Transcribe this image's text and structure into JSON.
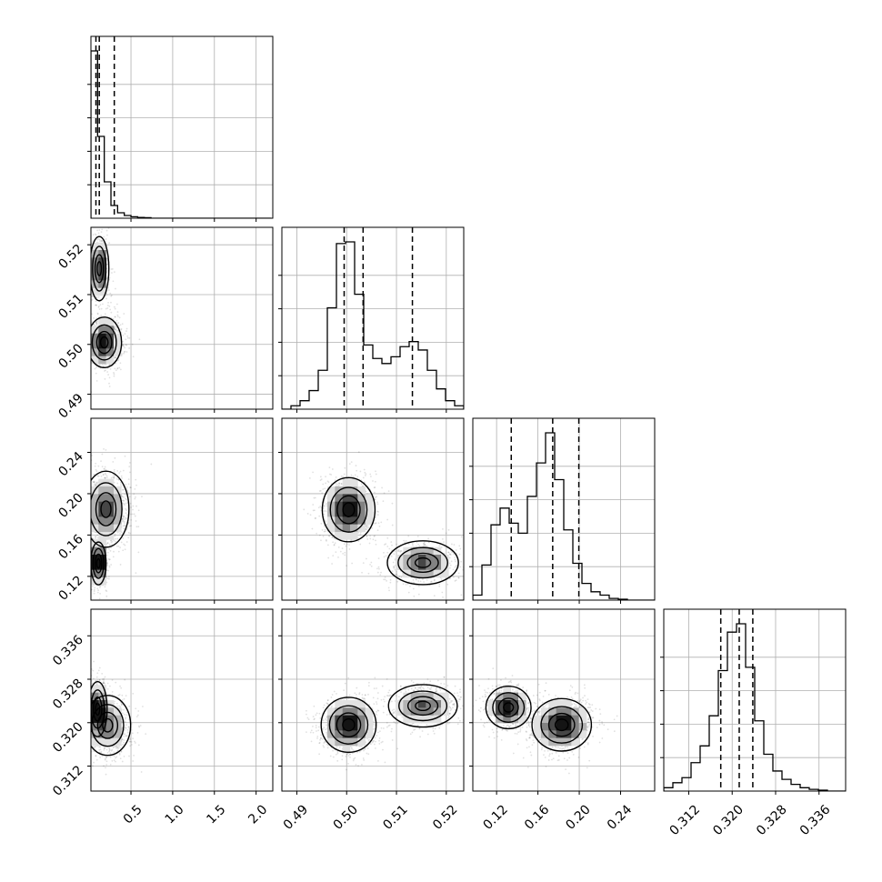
{
  "chart_data": {
    "type": "corner",
    "description_free": true,
    "parameters": [
      {
        "range": [
          0.02,
          2.2
        ],
        "ticks": [
          "0.5",
          "1.0",
          "1.5",
          "2.0"
        ],
        "tick_values": [
          0.5,
          1.0,
          1.5,
          2.0
        ],
        "quantile_lines": [
          0.08,
          0.12,
          0.3
        ],
        "histogram": {
          "bin_edges_start": 0.02,
          "bin_width": 0.08,
          "counts": [
            0.92,
            0.45,
            0.2,
            0.07,
            0.03,
            0.015,
            0.008,
            0.004,
            0.003,
            0.0,
            0.0,
            0.0,
            0.0,
            0.0,
            0.0,
            0.0,
            0.0,
            0.0,
            0.0,
            0.0,
            0.0,
            0.0,
            0.0,
            0.0,
            0.0,
            0.0,
            0.0
          ]
        }
      },
      {
        "range": [
          0.487,
          0.5235
        ],
        "ticks": [
          "0.49",
          "0.50",
          "0.51",
          "0.52"
        ],
        "tick_values": [
          0.49,
          0.5,
          0.51,
          0.52
        ],
        "quantile_lines": [
          0.4995,
          0.5033,
          0.5132
        ],
        "histogram": {
          "bin_edges_start": 0.487,
          "bin_width": 0.001825,
          "counts": [
            0.0,
            0.02,
            0.05,
            0.11,
            0.23,
            0.6,
            0.98,
            0.99,
            0.68,
            0.38,
            0.3,
            0.27,
            0.31,
            0.37,
            0.4,
            0.35,
            0.23,
            0.12,
            0.05,
            0.02
          ]
        }
      },
      {
        "range": [
          0.097,
          0.273
        ],
        "ticks": [
          "0.12",
          "0.16",
          "0.20",
          "0.24"
        ],
        "tick_values": [
          0.12,
          0.16,
          0.2,
          0.24
        ],
        "quantile_lines": [
          0.1342,
          0.1743,
          0.1996
        ],
        "histogram": {
          "bin_edges_start": 0.097,
          "bin_width": 0.0088,
          "counts": [
            0.03,
            0.21,
            0.45,
            0.55,
            0.46,
            0.4,
            0.62,
            0.82,
            1.0,
            0.72,
            0.42,
            0.22,
            0.1,
            0.05,
            0.03,
            0.01,
            0.005,
            0.0,
            0.0,
            0.0
          ]
        }
      },
      {
        "range": [
          0.3074,
          0.3409
        ],
        "ticks": [
          "0.312",
          "0.320",
          "0.328",
          "0.336"
        ],
        "tick_values": [
          0.312,
          0.32,
          0.328,
          0.336
        ],
        "quantile_lines": [
          0.3179,
          0.3213,
          0.3238
        ],
        "histogram": {
          "bin_edges_start": 0.3074,
          "bin_width": 0.001675,
          "counts": [
            0.02,
            0.05,
            0.08,
            0.17,
            0.27,
            0.45,
            0.72,
            0.95,
            1.0,
            0.74,
            0.42,
            0.22,
            0.12,
            0.07,
            0.04,
            0.02,
            0.01,
            0.005,
            0.0,
            0.0
          ]
        }
      }
    ],
    "pair_components": {
      "1_0": [
        {
          "mx": 0.12,
          "my": 0.5152,
          "sx": 0.05,
          "sy": 0.0028,
          "w": 0.4
        },
        {
          "mx": 0.18,
          "my": 0.5004,
          "sx": 0.09,
          "sy": 0.0022,
          "w": 0.6
        }
      ],
      "2_0": [
        {
          "mx": 0.11,
          "my": 0.1325,
          "sx": 0.04,
          "sy": 0.009,
          "w": 0.35
        },
        {
          "mx": 0.2,
          "my": 0.185,
          "sx": 0.12,
          "sy": 0.016,
          "w": 0.65
        }
      ],
      "2_1": [
        {
          "mx": 0.5004,
          "my": 0.1845,
          "sx": 0.0023,
          "sy": 0.0135,
          "w": 0.62
        },
        {
          "mx": 0.5153,
          "my": 0.1332,
          "sx": 0.0031,
          "sy": 0.0092,
          "w": 0.38
        }
      ],
      "3_0": [
        {
          "mx": 0.1,
          "my": 0.3225,
          "sx": 0.05,
          "sy": 0.0022,
          "w": 0.45
        },
        {
          "mx": 0.22,
          "my": 0.3195,
          "sx": 0.12,
          "sy": 0.0024,
          "w": 0.55
        }
      ],
      "3_1": [
        {
          "mx": 0.5004,
          "my": 0.3196,
          "sx": 0.0024,
          "sy": 0.0022,
          "w": 0.62
        },
        {
          "mx": 0.5153,
          "my": 0.3231,
          "sx": 0.003,
          "sy": 0.0017,
          "w": 0.38
        }
      ],
      "3_2": [
        {
          "mx": 0.1315,
          "my": 0.3228,
          "sx": 0.0095,
          "sy": 0.0017,
          "w": 0.38
        },
        {
          "mx": 0.183,
          "my": 0.3196,
          "sx": 0.0125,
          "sy": 0.0021,
          "w": 0.62
        }
      ]
    }
  }
}
